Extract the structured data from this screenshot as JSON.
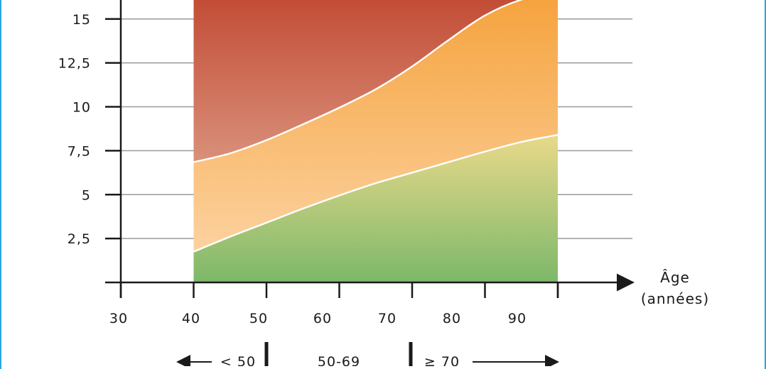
{
  "chart_data": {
    "type": "area",
    "x_axis": {
      "label_line1": "Âge",
      "label_line2": "(années)",
      "ticks": [
        30,
        40,
        50,
        60,
        70,
        80,
        90
      ],
      "range": [
        30,
        110
      ]
    },
    "y_axis": {
      "ticks": [
        "2,5",
        "5",
        "7,5",
        "10",
        "12,5",
        "15"
      ],
      "tick_values": [
        2.5,
        5,
        7.5,
        10,
        12.5,
        15
      ],
      "range": [
        0,
        16.5
      ]
    },
    "x_data_range": [
      40,
      90
    ],
    "grid": true,
    "zones": [
      {
        "colors": [
          "#e9d98a",
          "#7db86a"
        ]
      },
      {
        "colors": [
          "#f5a23c",
          "#fcd2a0"
        ]
      },
      {
        "colors": [
          "#c24a34",
          "#d9907a"
        ]
      }
    ],
    "series": [
      {
        "x": [
          40,
          45,
          50,
          55,
          60,
          65,
          70,
          75,
          80,
          85,
          90
        ],
        "values": [
          1.75,
          2.6,
          3.4,
          4.2,
          4.95,
          5.65,
          6.25,
          6.85,
          7.45,
          8.0,
          8.4
        ]
      },
      {
        "x": [
          40,
          45,
          50,
          55,
          60,
          65,
          70,
          75,
          80,
          85,
          90
        ],
        "values": [
          6.85,
          7.35,
          8.1,
          9.0,
          9.95,
          11.0,
          12.3,
          13.8,
          15.2,
          16.1,
          16.5
        ]
      }
    ],
    "age_groups": [
      {
        "label": "< 50"
      },
      {
        "label": "50-69"
      },
      {
        "label": "≥ 70"
      }
    ]
  }
}
